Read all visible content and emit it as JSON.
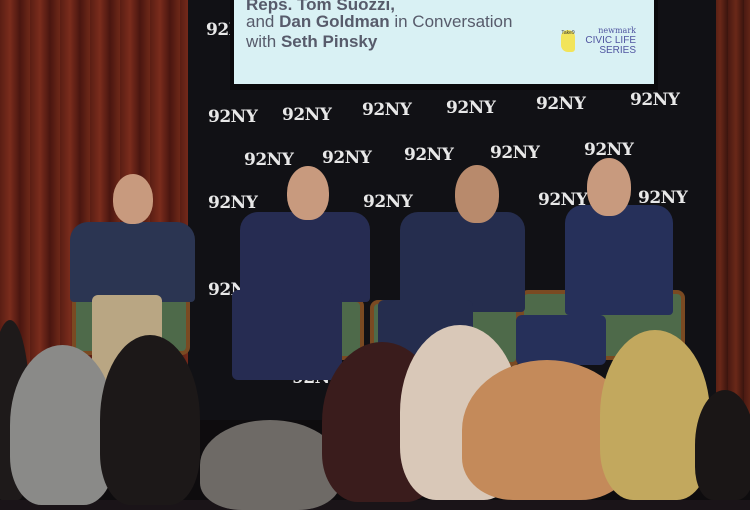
{
  "screen": {
    "line1_bold": "Reps. Tom Suozzi,",
    "line2_prefix": "and ",
    "line2_bold": "Dan Goldman",
    "line2_suffix": " in Conversation",
    "line3_prefix": "with ",
    "line3_bold": "Seth Pinsky",
    "take9_logo": "Take9",
    "series_brand": "newmark",
    "series_title_1": "CIVIC LIFE",
    "series_title_2": "SERIES"
  },
  "backdrop_logo": "92NY",
  "colors": {
    "screen_bg": "#d9f1f4",
    "screen_text": "#575b6b",
    "series_text": "#4f54a0",
    "curtain": "#6e2818",
    "backdrop": "#111115"
  }
}
